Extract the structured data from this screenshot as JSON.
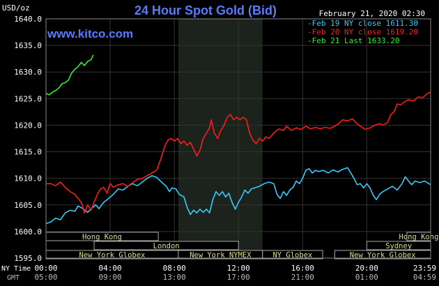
{
  "header": {
    "units": "USD/oz",
    "title": "24 Hour Spot Gold (Bid)",
    "date": "February 21, 2020 02:30",
    "brand": "www.kitco.com"
  },
  "legend": [
    {
      "label": "Feb 19 NY close 1611.30",
      "color": "#33ccff"
    },
    {
      "label": "Feb 20 NY close 1619.20",
      "color": "#ff1a1a"
    },
    {
      "label": "Feb 21 Last 1633.20",
      "color": "#33ee33"
    }
  ],
  "row_labels": {
    "ny": "NY Time",
    "gmt": "GMT"
  },
  "sessions": [
    {
      "label": "Hong Kong",
      "start": -1.5,
      "end": 7.0,
      "row": 0
    },
    {
      "label": "Hong Kong",
      "start": 22.5,
      "end": 31.0,
      "row": 0
    },
    {
      "label": "London",
      "start": 3.0,
      "end": 12.0,
      "row": 1
    },
    {
      "label": "Sydney",
      "start": 20.0,
      "end": 28.0,
      "row": 1
    },
    {
      "label": "New York Globex",
      "start": -6.0,
      "end": 8.25,
      "row": 2
    },
    {
      "label": "New York NYMEX",
      "start": 8.25,
      "end": 13.5,
      "row": 2
    },
    {
      "label": "NY Globex",
      "start": 13.5,
      "end": 17.25,
      "row": 2
    },
    {
      "label": "New York Globex",
      "start": 18.0,
      "end": 32.25,
      "row": 2
    }
  ],
  "chart_data": {
    "type": "line",
    "ylabel": "USD/oz",
    "ylim": [
      1595,
      1640
    ],
    "xlim": [
      0,
      23.98
    ],
    "yticks": [
      "1595.0",
      "1600.0",
      "1605.0",
      "1610.0",
      "1615.0",
      "1620.0",
      "1625.0",
      "1630.0",
      "1635.0",
      "1640.0"
    ],
    "xticks": [
      {
        "t": 0,
        "ny": "00:00",
        "gmt": "05:00"
      },
      {
        "t": 4,
        "ny": "04:00",
        "gmt": "09:00"
      },
      {
        "t": 8,
        "ny": "08:00",
        "gmt": "13:00"
      },
      {
        "t": 12,
        "ny": "12:00",
        "gmt": "17:00"
      },
      {
        "t": 16,
        "ny": "16:00",
        "gmt": "21:00"
      },
      {
        "t": 20,
        "ny": "20:00",
        "gmt": "01:00"
      },
      {
        "t": 23.98,
        "ny": "23:59",
        "gmt": "04:59"
      }
    ],
    "shaded_range": [
      8.25,
      13.5
    ],
    "grid": true,
    "series": [
      {
        "name": "Feb 19",
        "color": "#33ccff",
        "points": [
          [
            0,
            1601.5
          ],
          [
            0.3,
            1601.8
          ],
          [
            0.6,
            1602.5
          ],
          [
            0.9,
            1602.2
          ],
          [
            1.2,
            1603.5
          ],
          [
            1.5,
            1604.0
          ],
          [
            1.8,
            1603.8
          ],
          [
            2.0,
            1604.8
          ],
          [
            2.3,
            1604.3
          ],
          [
            2.6,
            1603.6
          ],
          [
            2.9,
            1604.5
          ],
          [
            3.1,
            1605.0
          ],
          [
            3.3,
            1604.3
          ],
          [
            3.6,
            1605.5
          ],
          [
            3.9,
            1606.2
          ],
          [
            4.2,
            1607.0
          ],
          [
            4.5,
            1608.0
          ],
          [
            4.8,
            1607.8
          ],
          [
            5.1,
            1608.5
          ],
          [
            5.4,
            1609.0
          ],
          [
            5.7,
            1608.6
          ],
          [
            6.0,
            1609.3
          ],
          [
            6.3,
            1610.0
          ],
          [
            6.6,
            1610.5
          ],
          [
            6.9,
            1610.2
          ],
          [
            7.2,
            1609.3
          ],
          [
            7.5,
            1608.5
          ],
          [
            7.7,
            1607.5
          ],
          [
            7.85,
            1608.2
          ],
          [
            8.1,
            1608.0
          ],
          [
            8.3,
            1607.0
          ],
          [
            8.6,
            1606.5
          ],
          [
            8.8,
            1604.5
          ],
          [
            9.0,
            1603.2
          ],
          [
            9.2,
            1604.0
          ],
          [
            9.4,
            1603.5
          ],
          [
            9.6,
            1604.2
          ],
          [
            9.8,
            1603.6
          ],
          [
            10.0,
            1604.2
          ],
          [
            10.2,
            1603.5
          ],
          [
            10.4,
            1606.0
          ],
          [
            10.6,
            1607.5
          ],
          [
            10.8,
            1606.8
          ],
          [
            11.0,
            1607.5
          ],
          [
            11.2,
            1606.5
          ],
          [
            11.4,
            1607.2
          ],
          [
            11.6,
            1605.5
          ],
          [
            11.8,
            1604.2
          ],
          [
            12.0,
            1605.5
          ],
          [
            12.2,
            1606.5
          ],
          [
            12.4,
            1607.8
          ],
          [
            12.6,
            1607.2
          ],
          [
            12.8,
            1608.0
          ],
          [
            13.0,
            1608.2
          ],
          [
            13.3,
            1608.5
          ],
          [
            13.6,
            1609.0
          ],
          [
            13.9,
            1609.3
          ],
          [
            14.2,
            1609.0
          ],
          [
            14.4,
            1607.0
          ],
          [
            14.6,
            1606.2
          ],
          [
            14.8,
            1607.5
          ],
          [
            15.0,
            1606.8
          ],
          [
            15.2,
            1607.8
          ],
          [
            15.4,
            1608.3
          ],
          [
            15.6,
            1609.5
          ],
          [
            15.8,
            1609.0
          ],
          [
            16.0,
            1610.0
          ],
          [
            16.2,
            1611.5
          ],
          [
            16.4,
            1611.8
          ],
          [
            16.6,
            1611.0
          ],
          [
            16.8,
            1611.5
          ],
          [
            17.0,
            1611.3
          ],
          [
            17.3,
            1611.5
          ],
          [
            17.6,
            1611.0
          ],
          [
            17.9,
            1611.6
          ],
          [
            18.2,
            1611.2
          ],
          [
            18.5,
            1611.7
          ],
          [
            18.8,
            1612.0
          ],
          [
            19.0,
            1611.0
          ],
          [
            19.2,
            1610.0
          ],
          [
            19.4,
            1608.8
          ],
          [
            19.6,
            1609.0
          ],
          [
            19.8,
            1608.2
          ],
          [
            20.0,
            1609.0
          ],
          [
            20.2,
            1608.2
          ],
          [
            20.4,
            1606.8
          ],
          [
            20.6,
            1606.0
          ],
          [
            20.8,
            1607.0
          ],
          [
            21.0,
            1607.5
          ],
          [
            21.3,
            1608.0
          ],
          [
            21.6,
            1608.5
          ],
          [
            21.9,
            1607.8
          ],
          [
            22.2,
            1609.0
          ],
          [
            22.4,
            1610.3
          ],
          [
            22.6,
            1609.5
          ],
          [
            22.8,
            1608.8
          ],
          [
            23.0,
            1609.5
          ],
          [
            23.3,
            1609.2
          ],
          [
            23.6,
            1609.5
          ],
          [
            23.98,
            1608.8
          ]
        ]
      },
      {
        "name": "Feb 20",
        "color": "#ff1a1a",
        "points": [
          [
            0,
            1609.0
          ],
          [
            0.3,
            1609.0
          ],
          [
            0.6,
            1608.6
          ],
          [
            0.9,
            1609.3
          ],
          [
            1.2,
            1608.3
          ],
          [
            1.5,
            1607.5
          ],
          [
            1.8,
            1607.0
          ],
          [
            2.0,
            1606.2
          ],
          [
            2.2,
            1605.5
          ],
          [
            2.4,
            1603.5
          ],
          [
            2.6,
            1605.0
          ],
          [
            2.8,
            1604.0
          ],
          [
            3.0,
            1605.5
          ],
          [
            3.2,
            1607.0
          ],
          [
            3.4,
            1608.0
          ],
          [
            3.6,
            1608.3
          ],
          [
            3.8,
            1607.2
          ],
          [
            4.0,
            1609.0
          ],
          [
            4.2,
            1608.3
          ],
          [
            4.5,
            1608.8
          ],
          [
            4.8,
            1609.0
          ],
          [
            5.1,
            1608.5
          ],
          [
            5.4,
            1609.2
          ],
          [
            5.7,
            1609.8
          ],
          [
            6.0,
            1610.0
          ],
          [
            6.3,
            1610.5
          ],
          [
            6.6,
            1611.0
          ],
          [
            6.9,
            1611.5
          ],
          [
            7.2,
            1614.0
          ],
          [
            7.4,
            1616.0
          ],
          [
            7.6,
            1617.2
          ],
          [
            7.8,
            1617.5
          ],
          [
            8.0,
            1617.0
          ],
          [
            8.2,
            1617.5
          ],
          [
            8.4,
            1616.5
          ],
          [
            8.6,
            1617.0
          ],
          [
            8.8,
            1616.2
          ],
          [
            9.0,
            1616.8
          ],
          [
            9.2,
            1615.5
          ],
          [
            9.4,
            1614.2
          ],
          [
            9.6,
            1615.3
          ],
          [
            9.8,
            1617.5
          ],
          [
            10.0,
            1618.5
          ],
          [
            10.2,
            1619.5
          ],
          [
            10.3,
            1621.0
          ],
          [
            10.5,
            1618.5
          ],
          [
            10.7,
            1617.5
          ],
          [
            10.9,
            1619.0
          ],
          [
            11.1,
            1620.0
          ],
          [
            11.3,
            1621.5
          ],
          [
            11.5,
            1622.0
          ],
          [
            11.7,
            1621.0
          ],
          [
            11.9,
            1621.5
          ],
          [
            12.1,
            1621.0
          ],
          [
            12.3,
            1621.5
          ],
          [
            12.5,
            1621.0
          ],
          [
            12.7,
            1618.5
          ],
          [
            12.9,
            1617.2
          ],
          [
            13.1,
            1616.5
          ],
          [
            13.3,
            1617.5
          ],
          [
            13.5,
            1617.0
          ],
          [
            13.7,
            1617.8
          ],
          [
            13.9,
            1617.5
          ],
          [
            14.2,
            1618.5
          ],
          [
            14.5,
            1619.3
          ],
          [
            14.8,
            1619.0
          ],
          [
            15.0,
            1619.8
          ],
          [
            15.3,
            1619.0
          ],
          [
            15.6,
            1619.5
          ],
          [
            15.9,
            1619.2
          ],
          [
            16.2,
            1619.8
          ],
          [
            16.5,
            1619.3
          ],
          [
            16.8,
            1619.6
          ],
          [
            17.1,
            1619.3
          ],
          [
            17.4,
            1619.6
          ],
          [
            17.7,
            1619.4
          ],
          [
            18.0,
            1619.8
          ],
          [
            18.2,
            1620.2
          ],
          [
            18.5,
            1621.0
          ],
          [
            18.8,
            1620.8
          ],
          [
            19.1,
            1621.2
          ],
          [
            19.3,
            1620.5
          ],
          [
            19.6,
            1619.8
          ],
          [
            19.9,
            1619.2
          ],
          [
            20.2,
            1619.5
          ],
          [
            20.5,
            1620.0
          ],
          [
            20.8,
            1620.3
          ],
          [
            21.0,
            1620.0
          ],
          [
            21.3,
            1620.5
          ],
          [
            21.5,
            1622.0
          ],
          [
            21.7,
            1622.5
          ],
          [
            21.9,
            1624.0
          ],
          [
            22.1,
            1623.8
          ],
          [
            22.3,
            1624.3
          ],
          [
            22.6,
            1624.8
          ],
          [
            22.9,
            1624.5
          ],
          [
            23.2,
            1625.3
          ],
          [
            23.5,
            1625.2
          ],
          [
            23.8,
            1626.0
          ],
          [
            23.98,
            1626.2
          ]
        ]
      },
      {
        "name": "Feb 21",
        "color": "#33ee33",
        "points": [
          [
            0,
            1626.0
          ],
          [
            0.2,
            1625.7
          ],
          [
            0.4,
            1626.2
          ],
          [
            0.6,
            1626.5
          ],
          [
            0.8,
            1627.0
          ],
          [
            1.0,
            1627.8
          ],
          [
            1.2,
            1628.0
          ],
          [
            1.4,
            1628.5
          ],
          [
            1.6,
            1629.8
          ],
          [
            1.8,
            1630.5
          ],
          [
            2.0,
            1631.0
          ],
          [
            2.2,
            1631.8
          ],
          [
            2.4,
            1631.2
          ],
          [
            2.6,
            1632.0
          ],
          [
            2.8,
            1632.3
          ],
          [
            2.95,
            1633.2
          ]
        ]
      }
    ]
  }
}
